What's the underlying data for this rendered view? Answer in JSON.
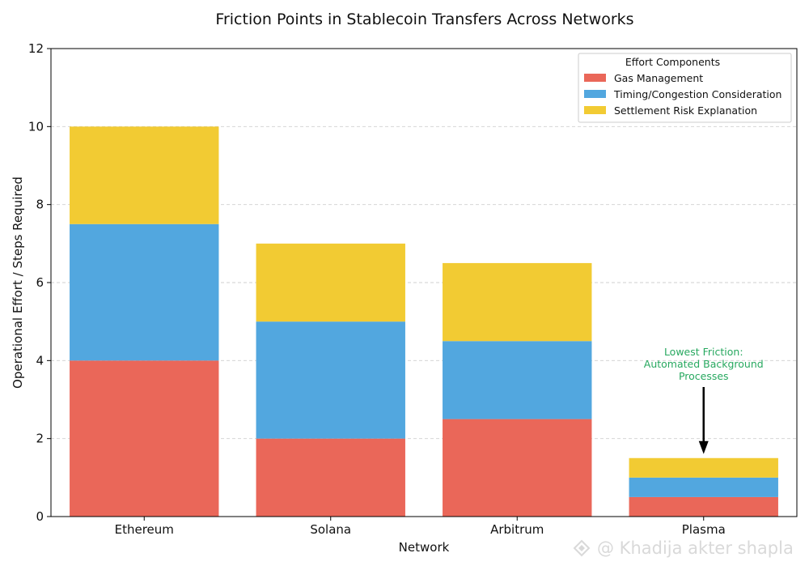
{
  "chart_data": {
    "type": "bar",
    "stacked": true,
    "title": "Friction Points in Stablecoin Transfers Across Networks",
    "xlabel": "Network",
    "ylabel": "Operational Effort / Steps Required",
    "categories": [
      "Ethereum",
      "Solana",
      "Arbitrum",
      "Plasma"
    ],
    "series": [
      {
        "name": "Gas Management",
        "values": [
          4,
          2,
          2.5,
          0.5
        ],
        "color": "#ea6759"
      },
      {
        "name": "Timing/Congestion Consideration",
        "values": [
          3.5,
          3,
          2,
          0.5
        ],
        "color": "#52a7df"
      },
      {
        "name": "Settlement Risk Explanation",
        "values": [
          2.5,
          2,
          2,
          0.5
        ],
        "color": "#f2cb33"
      }
    ],
    "ylim": [
      0,
      12
    ],
    "yticks": [
      0,
      2,
      4,
      6,
      8,
      10,
      12
    ],
    "grid": "y-dashed",
    "legend": {
      "title": "Effort Components",
      "position": "top-right"
    },
    "annotation": {
      "lines": [
        "Lowest Friction:",
        "Automated Background",
        "Processes"
      ],
      "target_category": "Plasma",
      "target_value": 1.5,
      "color": "#27a85f"
    }
  },
  "watermark": "@ Khadija akter shapla"
}
